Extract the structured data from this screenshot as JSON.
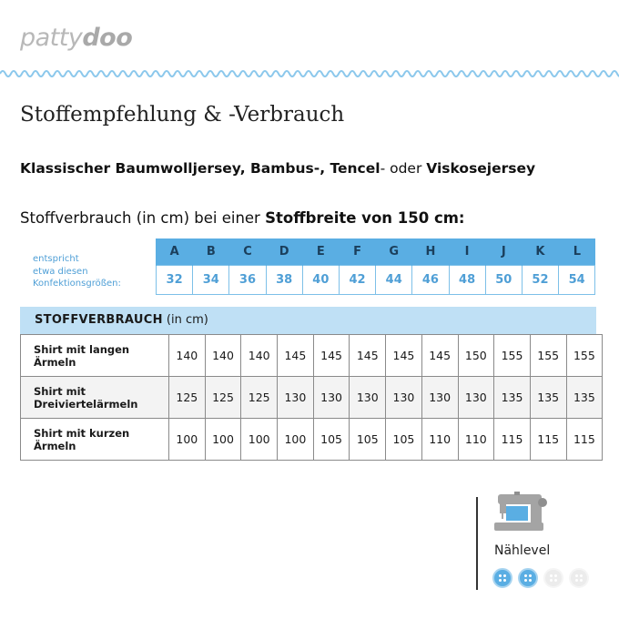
{
  "brand": {
    "part1": "patty",
    "part2": "doo"
  },
  "title": "Stoffempfehlung & -Verbrauch",
  "fabric": {
    "seg1": "Klassischer Baumwolljersey, Bambus-, Tencel",
    "seg2": "- oder ",
    "seg3": "Viskosejersey"
  },
  "usage": {
    "prefix": "Stoffverbrauch (in cm) bei einer ",
    "bold": "Stoffbreite von 150 cm:"
  },
  "size_label": {
    "line1": "entspricht",
    "line2": "etwa diesen",
    "line3": "Konfektionsgrößen:"
  },
  "sizes": {
    "letters": [
      "A",
      "B",
      "C",
      "D",
      "E",
      "F",
      "G",
      "H",
      "I",
      "J",
      "K",
      "L"
    ],
    "numbers": [
      "32",
      "34",
      "36",
      "38",
      "40",
      "42",
      "44",
      "46",
      "48",
      "50",
      "52",
      "54"
    ]
  },
  "usage_header": {
    "bold": "STOFFVERBRAUCH",
    "normal": " (in cm)"
  },
  "rows": [
    {
      "line1": "Shirt mit langen",
      "line2": "Ärmeln",
      "values": [
        "140",
        "140",
        "140",
        "145",
        "145",
        "145",
        "145",
        "145",
        "150",
        "155",
        "155",
        "155"
      ]
    },
    {
      "line1": "Shirt mit",
      "line2": "Dreiviertelärmeln",
      "values": [
        "125",
        "125",
        "125",
        "130",
        "130",
        "130",
        "130",
        "130",
        "130",
        "135",
        "135",
        "135"
      ]
    },
    {
      "line1": "Shirt mit kurzen",
      "line2": "Ärmeln",
      "values": [
        "100",
        "100",
        "100",
        "100",
        "105",
        "105",
        "105",
        "110",
        "110",
        "115",
        "115",
        "115"
      ]
    }
  ],
  "level": {
    "label": "Nählevel",
    "value": 2,
    "max": 4
  },
  "icons": {
    "machine": "sewing-machine-icon",
    "button": "button-icon"
  },
  "colors": {
    "accent": "#5aaee3",
    "light": "#bfe0f5",
    "logo": "#b8b8b8"
  }
}
